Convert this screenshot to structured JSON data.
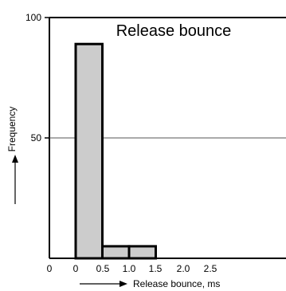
{
  "chart_data": {
    "type": "bar",
    "title": "Release bounce",
    "xlabel": "Release bounce, ms",
    "ylabel": "Frequency",
    "bins": [
      {
        "start": 0,
        "end": 0.5,
        "value": 89
      },
      {
        "start": 0.5,
        "end": 1.0,
        "value": 5
      },
      {
        "start": 1.0,
        "end": 1.5,
        "value": 5
      }
    ],
    "x_ticks": [
      "0",
      "0",
      "0.5",
      "1.0",
      "1.5",
      "2.0",
      "2.5"
    ],
    "y_ticks": [
      "100",
      "50"
    ],
    "reference_line": 50,
    "xlim": [
      -0.5,
      3.6
    ],
    "ylim": [
      0,
      100
    ],
    "grid": false,
    "colors": {
      "bar_fill": "#cccccc",
      "bar_stroke": "#000000",
      "axis": "#000000",
      "reference_line": "#555555"
    }
  }
}
